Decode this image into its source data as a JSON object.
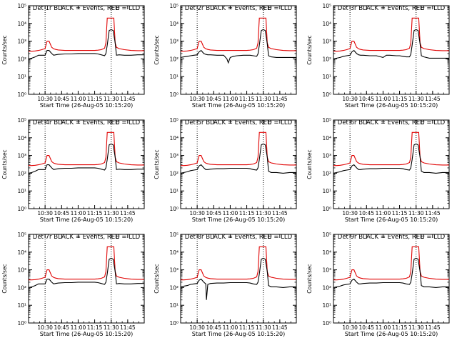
{
  "colors": {
    "events": "#000000",
    "lld": "#e00000",
    "axis": "#000000"
  },
  "chart_data": [
    {
      "type": "line",
      "title": "Det 1r BLACK = Events, RED = LLD",
      "xlabel": "Start Time (26-Aug-05 10:15:20)",
      "ylabel": "Counts/sec",
      "yscale": "log",
      "xlim": [
        10.25,
        12.0
      ],
      "ylim": [
        1,
        100000
      ],
      "xticks": [
        "10:30",
        "10:45",
        "11:00",
        "11:15",
        "11:30",
        "11:45"
      ],
      "xtick_values": [
        10.5,
        10.75,
        11.0,
        11.25,
        11.5,
        11.75
      ],
      "yticks": [
        "10⁰",
        "10¹",
        "10²",
        "10³",
        "10⁴",
        "10⁵"
      ],
      "ytick_values": [
        1,
        10,
        100,
        1000,
        10000,
        100000
      ],
      "annotation": "E",
      "vlines": [
        10.5,
        11.5
      ],
      "variant": 0
    },
    {
      "type": "line",
      "title": "Det 2r BLACK = Events, RED = LLD",
      "xlabel": "Start Time (26-Aug-05 10:15:20)",
      "ylabel": "Counts/sec",
      "yscale": "log",
      "xlim": [
        10.25,
        12.0
      ],
      "ylim": [
        1,
        100000
      ],
      "xticks": [
        "10:30",
        "10:45",
        "11:00",
        "11:15",
        "11:30",
        "11:45"
      ],
      "xtick_values": [
        10.5,
        10.75,
        11.0,
        11.25,
        11.5,
        11.75
      ],
      "yticks": [
        "10⁰",
        "10¹",
        "10²",
        "10³",
        "10⁴",
        "10⁵"
      ],
      "ytick_values": [
        1,
        10,
        100,
        1000,
        10000,
        100000
      ],
      "annotation": "E",
      "vlines": [
        10.5,
        11.5
      ],
      "variant": 1
    },
    {
      "type": "line",
      "title": "Det 3r BLACK = Events, RED = LLD",
      "xlabel": "Start Time (26-Aug-05 10:15:20)",
      "ylabel": "Counts/sec",
      "yscale": "log",
      "xlim": [
        10.25,
        12.0
      ],
      "ylim": [
        1,
        100000
      ],
      "xticks": [
        "10:30",
        "10:45",
        "11:00",
        "11:15",
        "11:30",
        "11:45"
      ],
      "xtick_values": [
        10.5,
        10.75,
        11.0,
        11.25,
        11.5,
        11.75
      ],
      "yticks": [
        "10⁰",
        "10¹",
        "10²",
        "10³",
        "10⁴",
        "10⁵"
      ],
      "ytick_values": [
        1,
        10,
        100,
        1000,
        10000,
        100000
      ],
      "annotation": "E",
      "vlines": [
        10.5,
        11.5
      ],
      "variant": 2
    },
    {
      "type": "line",
      "title": "Det 4r BLACK = Events, RED = LLD",
      "xlabel": "Start Time (26-Aug-05 10:15:20)",
      "ylabel": "Counts/sec",
      "yscale": "log",
      "xlim": [
        10.25,
        12.0
      ],
      "ylim": [
        1,
        100000
      ],
      "xticks": [
        "10:30",
        "10:45",
        "11:00",
        "11:15",
        "11:30",
        "11:45"
      ],
      "xtick_values": [
        10.5,
        10.75,
        11.0,
        11.25,
        11.5,
        11.75
      ],
      "yticks": [
        "10⁰",
        "10¹",
        "10²",
        "10³",
        "10⁴",
        "10⁵"
      ],
      "ytick_values": [
        1,
        10,
        100,
        1000,
        10000,
        100000
      ],
      "annotation": "E",
      "vlines": [
        10.5,
        11.5
      ],
      "variant": 0
    },
    {
      "type": "line",
      "title": "Det 5r BLACK = Events, RED = LLD",
      "xlabel": "Start Time (26-Aug-05 10:15:20)",
      "ylabel": "Counts/sec",
      "yscale": "log",
      "xlim": [
        10.25,
        12.0
      ],
      "ylim": [
        1,
        100000
      ],
      "xticks": [
        "10:30",
        "10:45",
        "11:00",
        "11:15",
        "11:30",
        "11:45"
      ],
      "xtick_values": [
        10.5,
        10.75,
        11.0,
        11.25,
        11.5,
        11.75
      ],
      "yticks": [
        "10⁰",
        "10¹",
        "10²",
        "10³",
        "10⁴",
        "10⁵"
      ],
      "ytick_values": [
        1,
        10,
        100,
        1000,
        10000,
        100000
      ],
      "annotation": "E",
      "vlines": [
        10.5,
        11.5
      ],
      "variant": 3
    },
    {
      "type": "line",
      "title": "Det 6r BLACK = Events, RED = LLD",
      "xlabel": "Start Time (26-Aug-05 10:15:20)",
      "ylabel": "Counts/sec",
      "yscale": "log",
      "xlim": [
        10.25,
        12.0
      ],
      "ylim": [
        1,
        100000
      ],
      "xticks": [
        "10:30",
        "10:45",
        "11:00",
        "11:15",
        "11:30",
        "11:45"
      ],
      "xtick_values": [
        10.5,
        10.75,
        11.0,
        11.25,
        11.5,
        11.75
      ],
      "yticks": [
        "10⁰",
        "10¹",
        "10²",
        "10³",
        "10⁴",
        "10⁵"
      ],
      "ytick_values": [
        1,
        10,
        100,
        1000,
        10000,
        100000
      ],
      "annotation": "E",
      "vlines": [
        10.5,
        11.5
      ],
      "variant": 3
    },
    {
      "type": "line",
      "title": "Det 7r BLACK = Events, RED = LLD",
      "xlabel": "Start Time (26-Aug-05 10:15:20)",
      "ylabel": "Counts/sec",
      "yscale": "log",
      "xlim": [
        10.25,
        12.0
      ],
      "ylim": [
        1,
        100000
      ],
      "xticks": [
        "10:30",
        "10:45",
        "11:00",
        "11:15",
        "11:30",
        "11:45"
      ],
      "xtick_values": [
        10.5,
        10.75,
        11.0,
        11.25,
        11.5,
        11.75
      ],
      "yticks": [
        "10⁰",
        "10¹",
        "10²",
        "10³",
        "10⁴",
        "10⁵"
      ],
      "ytick_values": [
        1,
        10,
        100,
        1000,
        10000,
        100000
      ],
      "annotation": "E",
      "vlines": [
        10.5,
        11.5
      ],
      "variant": 0
    },
    {
      "type": "line",
      "title": "Det 8r BLACK = Events, RED = LLD",
      "xlabel": "Start Time (26-Aug-05 10:15:20)",
      "ylabel": "Counts/sec",
      "yscale": "log",
      "xlim": [
        10.25,
        12.0
      ],
      "ylim": [
        1,
        100000
      ],
      "xticks": [
        "10:30",
        "10:45",
        "11:00",
        "11:15",
        "11:30",
        "11:45"
      ],
      "xtick_values": [
        10.5,
        10.75,
        11.0,
        11.25,
        11.5,
        11.75
      ],
      "yticks": [
        "10⁰",
        "10¹",
        "10²",
        "10³",
        "10⁴",
        "10⁵"
      ],
      "ytick_values": [
        1,
        10,
        100,
        1000,
        10000,
        100000
      ],
      "annotation": "E",
      "vlines": [
        10.5,
        11.5
      ],
      "variant": 4
    },
    {
      "type": "line",
      "title": "Det 9r BLACK = Events, RED = LLD",
      "xlabel": "Start Time (26-Aug-05 10:15:20)",
      "ylabel": "Counts/sec",
      "yscale": "log",
      "xlim": [
        10.25,
        12.0
      ],
      "ylim": [
        1,
        100000
      ],
      "xticks": [
        "10:30",
        "10:45",
        "11:00",
        "11:15",
        "11:30",
        "11:45"
      ],
      "xtick_values": [
        10.5,
        10.75,
        11.0,
        11.25,
        11.5,
        11.75
      ],
      "yticks": [
        "10⁰",
        "10¹",
        "10²",
        "10³",
        "10⁴",
        "10⁵"
      ],
      "ytick_values": [
        1,
        10,
        100,
        1000,
        10000,
        100000
      ],
      "annotation": "E",
      "vlines": [
        10.5,
        11.5
      ],
      "variant": 3
    }
  ],
  "series_shapes": {
    "lld": {
      "x": [
        10.25,
        10.3,
        10.35,
        10.4,
        10.45,
        10.5,
        10.53,
        10.56,
        10.6,
        10.63,
        10.66,
        10.7,
        10.8,
        10.9,
        11.0,
        11.1,
        11.2,
        11.25,
        11.3,
        11.35,
        11.4,
        11.42,
        11.44,
        11.46,
        11.5,
        11.54,
        11.56,
        11.58,
        11.62,
        11.7,
        11.8,
        11.9,
        12.0
      ],
      "y": [
        270,
        270,
        280,
        300,
        330,
        380,
        1000,
        1000,
        450,
        370,
        340,
        320,
        300,
        300,
        300,
        300,
        300,
        300,
        310,
        330,
        400,
        800,
        20000,
        20000,
        20000,
        20000,
        800,
        450,
        380,
        330,
        300,
        290,
        290
      ]
    },
    "events": [
      {
        "x": [
          10.25,
          10.3,
          10.35,
          10.4,
          10.45,
          10.5,
          10.53,
          10.56,
          10.6,
          10.63,
          10.66,
          10.7,
          10.8,
          10.9,
          11.0,
          11.1,
          11.2,
          11.25,
          11.3,
          11.35,
          11.4,
          11.42,
          11.44,
          11.47,
          11.5,
          11.53,
          11.56,
          11.58,
          11.62,
          11.7,
          11.8,
          11.9,
          12.0
        ],
        "y": [
          100,
          110,
          130,
          160,
          160,
          160,
          300,
          300,
          200,
          160,
          170,
          180,
          190,
          190,
          200,
          200,
          200,
          200,
          190,
          170,
          150,
          200,
          600,
          4000,
          4500,
          4000,
          800,
          160,
          170,
          160,
          160,
          170,
          170
        ]
      },
      {
        "x": [
          10.25,
          10.3,
          10.35,
          10.4,
          10.45,
          10.5,
          10.53,
          10.56,
          10.6,
          10.63,
          10.66,
          10.7,
          10.8,
          10.9,
          10.95,
          10.97,
          11.0,
          11.05,
          11.1,
          11.2,
          11.25,
          11.3,
          11.35,
          11.4,
          11.42,
          11.44,
          11.47,
          11.5,
          11.53,
          11.56,
          11.58,
          11.62,
          11.7,
          11.8,
          11.9,
          12.0
        ],
        "y": [
          120,
          130,
          140,
          150,
          160,
          170,
          250,
          300,
          200,
          180,
          170,
          170,
          160,
          160,
          100,
          60,
          120,
          140,
          150,
          160,
          160,
          160,
          150,
          140,
          190,
          600,
          4000,
          4500,
          4000,
          700,
          150,
          130,
          120,
          120,
          120,
          120
        ]
      },
      {
        "x": [
          10.25,
          10.3,
          10.35,
          10.4,
          10.45,
          10.5,
          10.53,
          10.56,
          10.6,
          10.63,
          10.66,
          10.7,
          10.8,
          10.9,
          11.0,
          11.05,
          11.1,
          11.2,
          11.25,
          11.3,
          11.35,
          11.4,
          11.42,
          11.44,
          11.47,
          11.5,
          11.53,
          11.56,
          11.58,
          11.62,
          11.7,
          11.8,
          11.9,
          12.0
        ],
        "y": [
          100,
          110,
          120,
          140,
          150,
          160,
          250,
          300,
          200,
          170,
          160,
          160,
          150,
          150,
          120,
          160,
          160,
          150,
          150,
          140,
          130,
          130,
          180,
          600,
          4000,
          4500,
          4000,
          700,
          150,
          130,
          110,
          110,
          110,
          110
        ]
      },
      {
        "x": [
          10.25,
          10.3,
          10.35,
          10.4,
          10.45,
          10.5,
          10.53,
          10.56,
          10.6,
          10.63,
          10.66,
          10.7,
          10.8,
          10.9,
          11.0,
          11.1,
          11.2,
          11.25,
          11.3,
          11.35,
          11.4,
          11.42,
          11.44,
          11.47,
          11.5,
          11.53,
          11.56,
          11.58,
          11.62,
          11.7,
          11.8,
          11.9,
          12.0
        ],
        "y": [
          100,
          110,
          120,
          140,
          150,
          160,
          260,
          300,
          200,
          160,
          160,
          170,
          180,
          180,
          190,
          190,
          190,
          190,
          180,
          160,
          150,
          200,
          600,
          4000,
          4500,
          4000,
          800,
          130,
          110,
          110,
          100,
          110,
          110
        ]
      },
      {
        "x": [
          10.25,
          10.3,
          10.35,
          10.4,
          10.45,
          10.5,
          10.53,
          10.56,
          10.6,
          10.63,
          10.64,
          10.66,
          10.7,
          10.8,
          10.9,
          11.0,
          11.1,
          11.2,
          11.25,
          11.3,
          11.35,
          11.4,
          11.42,
          11.44,
          11.47,
          11.5,
          11.53,
          11.56,
          11.58,
          11.62,
          11.7,
          11.8,
          11.9,
          12.0
        ],
        "y": [
          110,
          120,
          130,
          150,
          160,
          170,
          260,
          300,
          200,
          160,
          20,
          150,
          170,
          180,
          180,
          190,
          190,
          190,
          190,
          180,
          160,
          150,
          200,
          600,
          4000,
          4500,
          4000,
          800,
          130,
          110,
          110,
          100,
          110,
          110
        ]
      }
    ]
  }
}
